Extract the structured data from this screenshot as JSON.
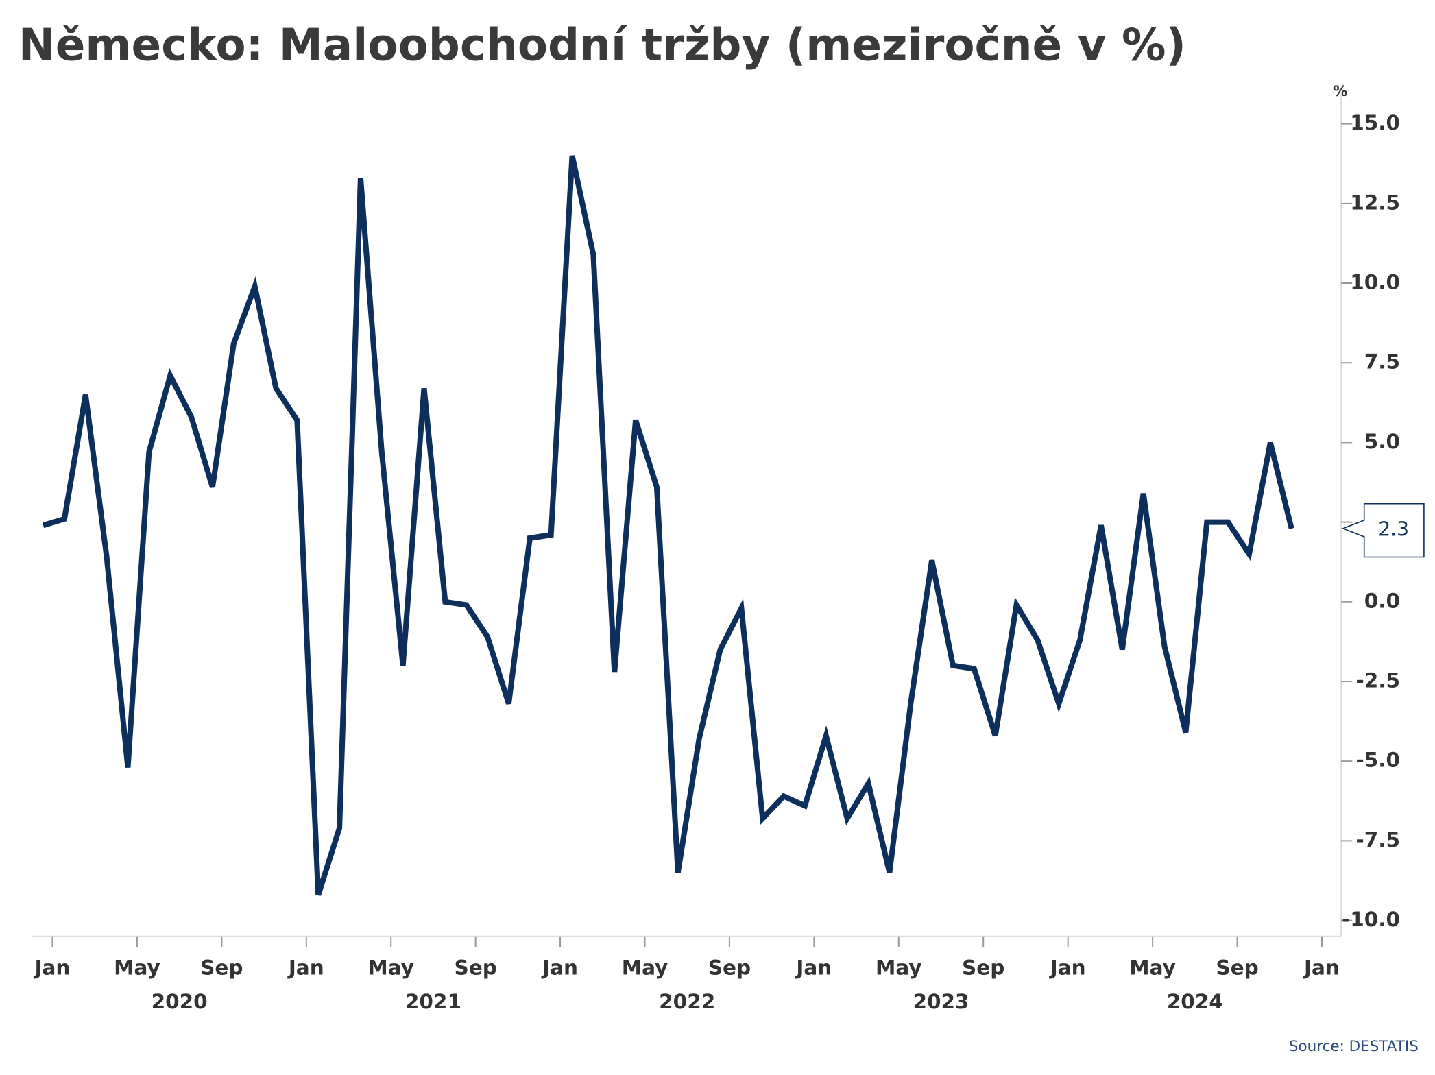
{
  "chart_data": {
    "type": "line",
    "title": "Německo: Maloobchodní tržby (meziročně v %)",
    "y_unit": "%",
    "source": "Source: DESTATIS",
    "categories": [
      "2020-01",
      "2020-02",
      "2020-03",
      "2020-04",
      "2020-05",
      "2020-06",
      "2020-07",
      "2020-08",
      "2020-09",
      "2020-10",
      "2020-11",
      "2020-12",
      "2021-01",
      "2021-02",
      "2021-03",
      "2021-04",
      "2021-05",
      "2021-06",
      "2021-07",
      "2021-08",
      "2021-09",
      "2021-10",
      "2021-11",
      "2021-12",
      "2022-01",
      "2022-02",
      "2022-03",
      "2022-04",
      "2022-05",
      "2022-06",
      "2022-07",
      "2022-08",
      "2022-09",
      "2022-10",
      "2022-11",
      "2022-12",
      "2023-01",
      "2023-02",
      "2023-03",
      "2023-04",
      "2023-05",
      "2023-06",
      "2023-07",
      "2023-08",
      "2023-09",
      "2023-10",
      "2023-11",
      "2023-12",
      "2024-01",
      "2024-02",
      "2024-03",
      "2024-04",
      "2024-05",
      "2024-06",
      "2024-07",
      "2024-08",
      "2024-09",
      "2024-10",
      "2024-11",
      "2024-12"
    ],
    "series": [
      {
        "name": "Maloobchodní tržby",
        "color": "#0d2f5c",
        "values": [
          2.4,
          2.6,
          6.5,
          1.4,
          -5.2,
          4.7,
          7.1,
          5.8,
          3.6,
          8.1,
          9.9,
          6.7,
          5.7,
          -9.2,
          -7.1,
          13.3,
          4.7,
          -2.0,
          6.7,
          0.0,
          -0.1,
          -1.1,
          -3.2,
          2.0,
          2.1,
          14.0,
          10.9,
          -2.2,
          5.7,
          3.6,
          -8.5,
          -4.3,
          -1.5,
          -0.2,
          -6.8,
          -6.1,
          -6.4,
          -4.2,
          -6.8,
          -5.7,
          -8.5,
          -3.2,
          1.3,
          -2.0,
          -2.1,
          -4.2,
          -0.1,
          -1.2,
          -3.2,
          -1.2,
          2.4,
          -1.5,
          3.4,
          -1.4,
          -4.1,
          2.5,
          2.5,
          1.5,
          5.0,
          2.3
        ]
      }
    ],
    "ylim": [
      -10.5,
      16
    ],
    "yticks": [
      {
        "value": -10,
        "label": "-10.0"
      },
      {
        "value": -7.5,
        "label": "-7.5"
      },
      {
        "value": -5,
        "label": "-5.0"
      },
      {
        "value": -2.5,
        "label": "-2.5"
      },
      {
        "value": 0,
        "label": "0.0"
      },
      2.5,
      {
        "value": 5,
        "label": "5.0"
      },
      7.5,
      {
        "value": 10,
        "label": "10.0"
      },
      12.5,
      {
        "value": 15,
        "label": "15.0"
      }
    ],
    "xticks": [
      {
        "value": 0,
        "label": "Jan"
      },
      {
        "value": 4,
        "label": "May"
      },
      {
        "value": 8,
        "label": "Sep"
      },
      {
        "value": 12,
        "label": "Jan"
      },
      {
        "value": 16,
        "label": "May"
      },
      {
        "value": 20,
        "label": "Sep"
      },
      {
        "value": 24,
        "label": "Jan"
      },
      {
        "value": 28,
        "label": "May"
      },
      {
        "value": 32,
        "label": "Sep"
      },
      {
        "value": 36,
        "label": "Jan"
      },
      {
        "value": 40,
        "label": "May"
      },
      {
        "value": 44,
        "label": "Sep"
      },
      {
        "value": 48,
        "label": "Jan"
      },
      {
        "value": 52,
        "label": "May"
      },
      {
        "value": 56,
        "label": "Sep"
      },
      {
        "value": 60,
        "label": "Jan"
      }
    ],
    "years": [
      "2020",
      "2021",
      "2022",
      "2023",
      "2024"
    ],
    "grid": false
  }
}
